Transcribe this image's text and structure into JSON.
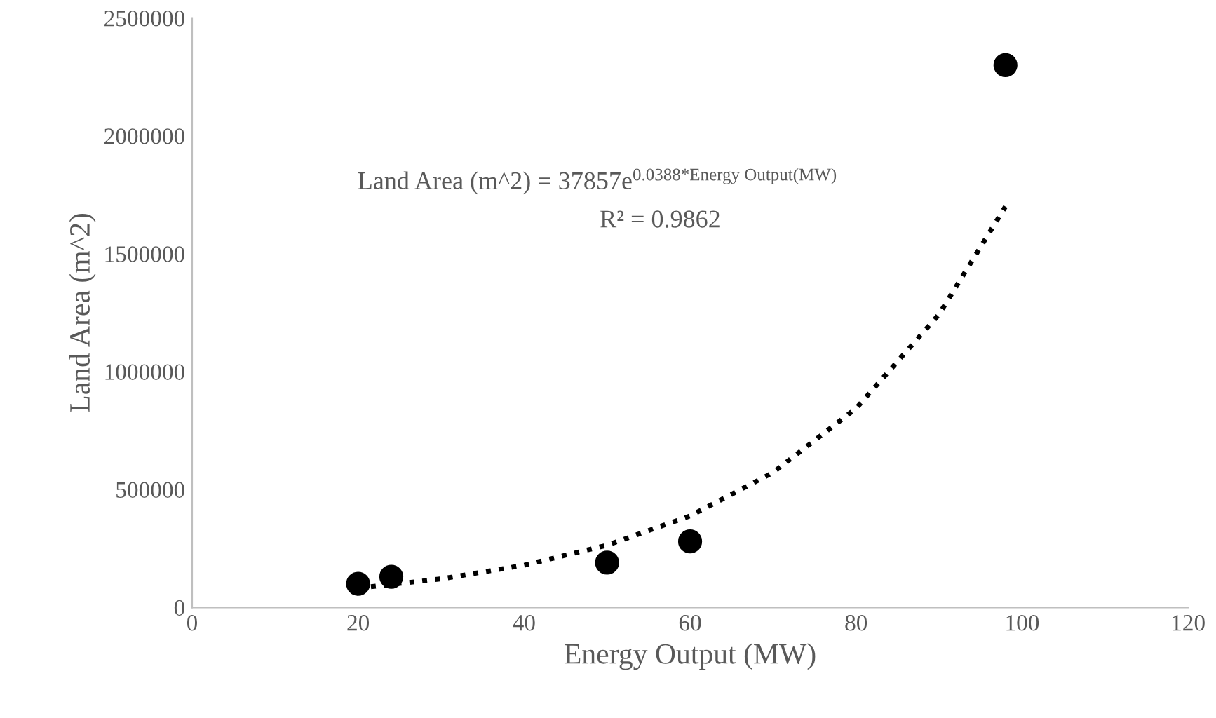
{
  "chart_data": {
    "type": "scatter",
    "xlabel": "Energy Output (MW)",
    "ylabel": "Land Area (m^2)",
    "series": [
      {
        "color": "#000000",
        "marker": "circle",
        "x": [
          20,
          24,
          50,
          60,
          98
        ],
        "values": [
          100000,
          130000,
          190000,
          280000,
          2300000
        ]
      },
      {
        "type": "line",
        "color": "#000000",
        "line_style": "dotted",
        "marker": "none",
        "x": [
          20,
          30,
          40,
          50,
          60,
          70,
          80,
          90,
          98
        ],
        "values": [
          82000,
          121000,
          179000,
          264000,
          388000,
          572000,
          844000,
          1243000,
          1700000
        ]
      }
    ],
    "annotations": [
      "Land Area (m^2) = 37857e$^{0.0388*Energy Output(MW)}$",
      "R² = 0.9862"
    ],
    "xlim": [
      0,
      120
    ],
    "xticks": [
      0,
      20,
      40,
      60,
      80,
      100,
      120
    ],
    "ylim": [
      0,
      2500000
    ],
    "yticks": [
      0,
      500000,
      1000000,
      1500000,
      2000000,
      2500000
    ],
    "grid": false,
    "legend": false
  }
}
